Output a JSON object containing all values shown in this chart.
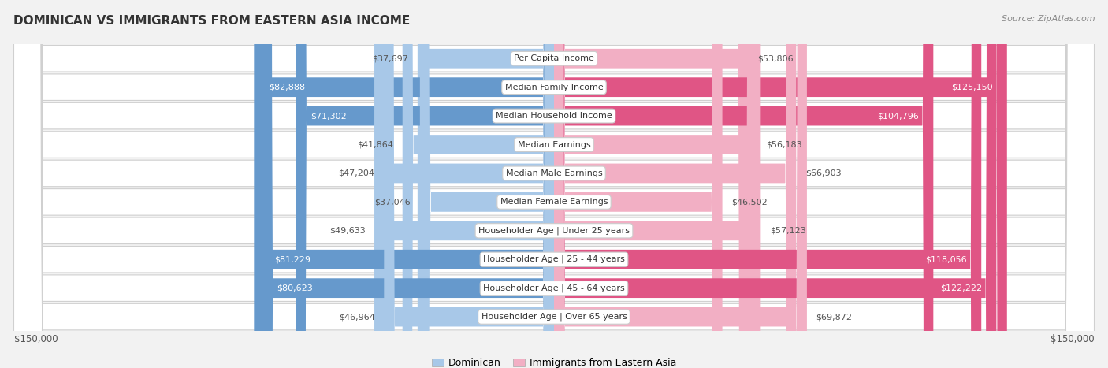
{
  "title": "DOMINICAN VS IMMIGRANTS FROM EASTERN ASIA INCOME",
  "source": "Source: ZipAtlas.com",
  "categories": [
    "Per Capita Income",
    "Median Family Income",
    "Median Household Income",
    "Median Earnings",
    "Median Male Earnings",
    "Median Female Earnings",
    "Householder Age | Under 25 years",
    "Householder Age | 25 - 44 years",
    "Householder Age | 45 - 64 years",
    "Householder Age | Over 65 years"
  ],
  "dominican_values": [
    37697,
    82888,
    71302,
    41864,
    47204,
    37046,
    49633,
    81229,
    80623,
    46964
  ],
  "eastern_asia_values": [
    53806,
    125150,
    104796,
    56183,
    66903,
    46502,
    57123,
    118056,
    122222,
    69872
  ],
  "dominican_labels": [
    "$37,697",
    "$82,888",
    "$71,302",
    "$41,864",
    "$47,204",
    "$37,046",
    "$49,633",
    "$81,229",
    "$80,623",
    "$46,964"
  ],
  "eastern_asia_labels": [
    "$53,806",
    "$125,150",
    "$104,796",
    "$56,183",
    "$66,903",
    "$46,502",
    "$57,123",
    "$118,056",
    "$122,222",
    "$69,872"
  ],
  "max_value": 150000,
  "dominican_color_light": "#a8c8e8",
  "dominican_color_dark": "#6699cc",
  "eastern_asia_color_light": "#f2afc4",
  "eastern_asia_color_dark": "#e05585",
  "dom_dark_threshold": 65000,
  "ea_dark_threshold": 100000,
  "bg_color": "#f2f2f2",
  "row_bg_color": "#ffffff",
  "row_border_color": "#d0d0d0",
  "label_dark_text": "#ffffff",
  "label_light_text": "#555555",
  "legend_dominican": "Dominican",
  "legend_eastern_asia": "Immigrants from Eastern Asia",
  "ylabel_left": "$150,000",
  "ylabel_right": "$150,000",
  "title_fontsize": 11,
  "source_fontsize": 8,
  "bar_label_fontsize": 8,
  "cat_label_fontsize": 8
}
